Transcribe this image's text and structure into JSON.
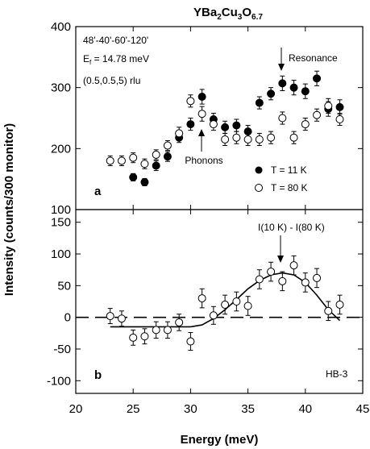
{
  "chart_data": [
    {
      "type": "scatter",
      "panel_label": "a",
      "title_parts": {
        "base": "YBa",
        "s1": "2",
        "mid1": "Cu",
        "s2": "3",
        "mid2": "O",
        "s3": "6.7"
      },
      "xlim": [
        20,
        45
      ],
      "ylim": [
        100,
        400
      ],
      "y_ticks": [
        100,
        200,
        300,
        400
      ],
      "annotations": {
        "collimation": "48'-40'-60'-120'",
        "ef_prefix": "E",
        "ef_sub": "f",
        "ef_suffix": " = 14.78 meV",
        "q": "(0.5,0.5,5) rlu",
        "resonance": "Resonance",
        "phonons": "Phonons"
      },
      "legend_position": "lower-right",
      "series": [
        {
          "name": "T = 11 K",
          "marker": "filled-circle",
          "color": "#000000",
          "points": [
            {
              "x": 25,
              "y": 153,
              "err": 6
            },
            {
              "x": 26,
              "y": 145,
              "err": 6
            },
            {
              "x": 27,
              "y": 172,
              "err": 8
            },
            {
              "x": 28,
              "y": 187,
              "err": 8
            },
            {
              "x": 29,
              "y": 218,
              "err": 8
            },
            {
              "x": 30,
              "y": 240,
              "err": 10
            },
            {
              "x": 31,
              "y": 285,
              "err": 12
            },
            {
              "x": 32,
              "y": 248,
              "err": 10
            },
            {
              "x": 33,
              "y": 235,
              "err": 10
            },
            {
              "x": 34,
              "y": 238,
              "err": 10
            },
            {
              "x": 35,
              "y": 228,
              "err": 10
            },
            {
              "x": 36,
              "y": 275,
              "err": 10
            },
            {
              "x": 37,
              "y": 290,
              "err": 10
            },
            {
              "x": 38,
              "y": 307,
              "err": 12
            },
            {
              "x": 39,
              "y": 300,
              "err": 12
            },
            {
              "x": 40,
              "y": 294,
              "err": 12
            },
            {
              "x": 41,
              "y": 315,
              "err": 12
            },
            {
              "x": 42,
              "y": 265,
              "err": 12
            },
            {
              "x": 43,
              "y": 268,
              "err": 12
            }
          ]
        },
        {
          "name": "T = 80 K",
          "marker": "open-circle",
          "color": "#000000",
          "points": [
            {
              "x": 23,
              "y": 180,
              "err": 8
            },
            {
              "x": 24,
              "y": 180,
              "err": 8
            },
            {
              "x": 25,
              "y": 185,
              "err": 8
            },
            {
              "x": 26,
              "y": 175,
              "err": 8
            },
            {
              "x": 27,
              "y": 190,
              "err": 8
            },
            {
              "x": 28,
              "y": 205,
              "err": 8
            },
            {
              "x": 29,
              "y": 225,
              "err": 10
            },
            {
              "x": 30,
              "y": 278,
              "err": 10
            },
            {
              "x": 31,
              "y": 257,
              "err": 12
            },
            {
              "x": 32,
              "y": 240,
              "err": 10
            },
            {
              "x": 33,
              "y": 215,
              "err": 10
            },
            {
              "x": 34,
              "y": 218,
              "err": 10
            },
            {
              "x": 35,
              "y": 215,
              "err": 10
            },
            {
              "x": 36,
              "y": 215,
              "err": 10
            },
            {
              "x": 37,
              "y": 218,
              "err": 10
            },
            {
              "x": 38,
              "y": 250,
              "err": 10
            },
            {
              "x": 39,
              "y": 218,
              "err": 10
            },
            {
              "x": 40,
              "y": 240,
              "err": 10
            },
            {
              "x": 41,
              "y": 255,
              "err": 10
            },
            {
              "x": 42,
              "y": 270,
              "err": 12
            },
            {
              "x": 43,
              "y": 248,
              "err": 10
            }
          ]
        }
      ]
    },
    {
      "type": "scatter",
      "panel_label": "b",
      "xlim": [
        20,
        45
      ],
      "ylim": [
        -120,
        170
      ],
      "y_ticks": [
        -100,
        -50,
        0,
        50,
        100,
        150
      ],
      "x_ticks": [
        20,
        25,
        30,
        35,
        40,
        45
      ],
      "xlabel": "Energy (meV)",
      "ylabel": "Intensity (counts/300 monitor)",
      "annotations": {
        "difference": "I(10 K) - I(80 K)",
        "instrument": "HB-3"
      },
      "series": [
        {
          "marker": "open-circle",
          "color": "#000000",
          "points": [
            {
              "x": 23,
              "y": 2,
              "err": 12
            },
            {
              "x": 24,
              "y": -2,
              "err": 12
            },
            {
              "x": 25,
              "y": -32,
              "err": 12
            },
            {
              "x": 26,
              "y": -30,
              "err": 12
            },
            {
              "x": 27,
              "y": -20,
              "err": 13
            },
            {
              "x": 28,
              "y": -20,
              "err": 13
            },
            {
              "x": 29,
              "y": -8,
              "err": 13
            },
            {
              "x": 30,
              "y": -38,
              "err": 14
            },
            {
              "x": 31,
              "y": 30,
              "err": 15
            },
            {
              "x": 32,
              "y": 3,
              "err": 14
            },
            {
              "x": 33,
              "y": 20,
              "err": 15
            },
            {
              "x": 34,
              "y": 25,
              "err": 15
            },
            {
              "x": 35,
              "y": 18,
              "err": 15
            },
            {
              "x": 36,
              "y": 60,
              "err": 15
            },
            {
              "x": 37,
              "y": 72,
              "err": 15
            },
            {
              "x": 38,
              "y": 57,
              "err": 15
            },
            {
              "x": 39,
              "y": 82,
              "err": 15
            },
            {
              "x": 40,
              "y": 55,
              "err": 15
            },
            {
              "x": 41,
              "y": 62,
              "err": 15
            },
            {
              "x": 42,
              "y": 10,
              "err": 15
            },
            {
              "x": 43,
              "y": 20,
              "err": 15
            }
          ]
        },
        {
          "marker": "line",
          "color": "#000000",
          "points": [
            {
              "x": 23,
              "y": -15
            },
            {
              "x": 30,
              "y": -15
            },
            {
              "x": 31,
              "y": -12
            },
            {
              "x": 32,
              "y": -2
            },
            {
              "x": 33,
              "y": 12
            },
            {
              "x": 34,
              "y": 28
            },
            {
              "x": 35,
              "y": 45
            },
            {
              "x": 36,
              "y": 58
            },
            {
              "x": 37,
              "y": 67
            },
            {
              "x": 38,
              "y": 70
            },
            {
              "x": 39,
              "y": 67
            },
            {
              "x": 40,
              "y": 55
            },
            {
              "x": 41,
              "y": 35
            },
            {
              "x": 42,
              "y": 12
            },
            {
              "x": 43,
              "y": -5
            }
          ]
        },
        {
          "marker": "dashed-line",
          "color": "#000000",
          "points": [
            {
              "x": 20,
              "y": 0
            },
            {
              "x": 45,
              "y": 0
            }
          ]
        }
      ]
    }
  ]
}
